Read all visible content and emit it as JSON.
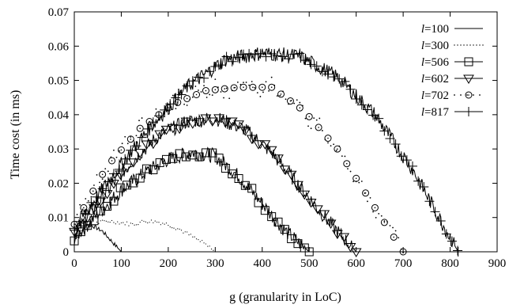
{
  "chart_data": {
    "type": "line",
    "title": "",
    "xlabel": "g (granularity in LoC)",
    "ylabel": "Time cost (in ms)",
    "xlim": [
      0,
      900
    ],
    "ylim": [
      0,
      0.07
    ],
    "x_ticks": [
      "0",
      "100",
      "200",
      "300",
      "400",
      "500",
      "600",
      "700",
      "800",
      "900"
    ],
    "y_ticks": [
      "0",
      "0.01",
      "0.02",
      "0.03",
      "0.04",
      "0.05",
      "0.06",
      "0.07"
    ],
    "grid": false,
    "legend_position": "top-right",
    "series": [
      {
        "name": "l=100",
        "legend_prefix": "l",
        "legend_suffix": "=100",
        "style": "solid-line",
        "x": [
          0,
          20,
          40,
          60,
          80,
          100
        ],
        "y": [
          0.008,
          0.0085,
          0.0075,
          0.006,
          0.003,
          0.0
        ]
      },
      {
        "name": "l=300",
        "legend_prefix": "l",
        "legend_suffix": "=300",
        "style": "dotted-line",
        "x": [
          0,
          25,
          50,
          75,
          100,
          125,
          150,
          175,
          200,
          225,
          250,
          275,
          300
        ],
        "y": [
          0.005,
          0.007,
          0.0085,
          0.009,
          0.0085,
          0.008,
          0.009,
          0.0088,
          0.008,
          0.0065,
          0.0045,
          0.0025,
          0.0
        ]
      },
      {
        "name": "l=506",
        "legend_prefix": "l",
        "legend_suffix": "=506",
        "style": "square-markers",
        "x": [
          0,
          50,
          100,
          150,
          200,
          250,
          300,
          350,
          400,
          450,
          500
        ],
        "y": [
          0.004,
          0.011,
          0.018,
          0.023,
          0.027,
          0.029,
          0.028,
          0.022,
          0.014,
          0.006,
          0.0
        ]
      },
      {
        "name": "l=602",
        "legend_prefix": "l",
        "legend_suffix": "=602",
        "style": "triangle-markers",
        "x": [
          0,
          60,
          120,
          180,
          240,
          300,
          360,
          420,
          480,
          540,
          600
        ],
        "y": [
          0.005,
          0.016,
          0.026,
          0.034,
          0.038,
          0.039,
          0.036,
          0.029,
          0.019,
          0.009,
          0.0
        ]
      },
      {
        "name": "l=702",
        "legend_prefix": "l",
        "legend_suffix": "=702",
        "style": "circle-markers",
        "x": [
          0,
          70,
          140,
          210,
          280,
          350,
          420,
          490,
          560,
          630,
          700
        ],
        "y": [
          0.008,
          0.025,
          0.036,
          0.043,
          0.047,
          0.048,
          0.048,
          0.041,
          0.03,
          0.015,
          0.0
        ]
      },
      {
        "name": "l=817",
        "legend_prefix": "l",
        "legend_suffix": "=817",
        "style": "plus-markers",
        "x": [
          0,
          80,
          160,
          240,
          320,
          400,
          480,
          560,
          640,
          720,
          817
        ],
        "y": [
          0.007,
          0.022,
          0.036,
          0.048,
          0.056,
          0.058,
          0.057,
          0.051,
          0.04,
          0.024,
          0.0
        ]
      }
    ]
  }
}
